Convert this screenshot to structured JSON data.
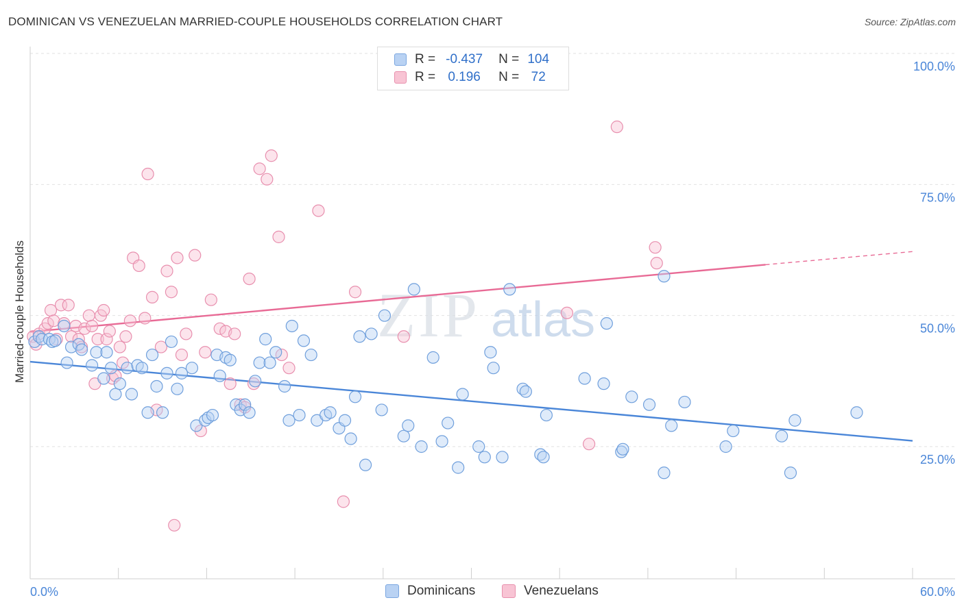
{
  "title": "DOMINICAN VS VENEZUELAN MARRIED-COUPLE HOUSEHOLDS CORRELATION CHART",
  "source": "Source: ZipAtlas.com",
  "watermark": {
    "zip": "ZIP",
    "atlas": "atlas"
  },
  "legend": {
    "rows": [
      {
        "r_label": "R =",
        "r_value": "-0.437",
        "n_label": "N =",
        "n_value": "104",
        "color": "#4a86d8"
      },
      {
        "r_label": "R =",
        "r_value": "0.196",
        "n_label": "N =",
        "n_value": "72",
        "color": "#e86a95"
      }
    ]
  },
  "bottom_legend": [
    "Dominicans",
    "Venezuelans"
  ],
  "colors": {
    "blue": "#4a86d8",
    "pink": "#e86a95",
    "axis_label": "#4a86d8"
  },
  "chart_data": {
    "type": "scatter",
    "ylabel": "Married-couple Households",
    "xlabel": "",
    "xlim": [
      0,
      60
    ],
    "ylim": [
      0,
      105
    ],
    "x_tick_labels": [
      "0.0%",
      "60.0%"
    ],
    "y_tick_labels": [
      "25.0%",
      "50.0%",
      "75.0%",
      "100.0%"
    ],
    "y_ticks": [
      25,
      50,
      75,
      100
    ],
    "series": [
      {
        "name": "Dominicans",
        "color": "#4a86d8",
        "trend": {
          "x0": 0,
          "y0": 41.2,
          "x1": 60,
          "y1": 26.1
        },
        "points": [
          [
            0.3,
            45
          ],
          [
            0.6,
            46
          ],
          [
            0.8,
            45.5
          ],
          [
            1.3,
            45.5
          ],
          [
            1.5,
            45
          ],
          [
            1.7,
            45.2
          ],
          [
            2.3,
            48
          ],
          [
            2.5,
            41
          ],
          [
            2.8,
            44
          ],
          [
            3.3,
            44.5
          ],
          [
            3.5,
            43.5
          ],
          [
            4.2,
            40.5
          ],
          [
            4.5,
            43
          ],
          [
            5,
            38
          ],
          [
            5.2,
            43
          ],
          [
            5.5,
            40
          ],
          [
            5.8,
            35
          ],
          [
            6.1,
            37
          ],
          [
            6.6,
            40
          ],
          [
            6.9,
            35
          ],
          [
            7.3,
            40.5
          ],
          [
            7.6,
            40
          ],
          [
            8,
            31.5
          ],
          [
            8.3,
            42.5
          ],
          [
            8.6,
            36.5
          ],
          [
            9,
            31.5
          ],
          [
            9.3,
            39
          ],
          [
            9.6,
            45
          ],
          [
            10,
            36
          ],
          [
            10.3,
            39
          ],
          [
            11,
            40
          ],
          [
            11.3,
            29
          ],
          [
            11.9,
            30
          ],
          [
            12.1,
            30.5
          ],
          [
            12.4,
            31
          ],
          [
            12.7,
            42.5
          ],
          [
            12.9,
            38.5
          ],
          [
            13.3,
            42
          ],
          [
            13.6,
            41.5
          ],
          [
            14,
            33
          ],
          [
            14.3,
            32
          ],
          [
            14.6,
            33
          ],
          [
            14.9,
            31.5
          ],
          [
            15.3,
            37.5
          ],
          [
            15.6,
            41
          ],
          [
            16,
            45.5
          ],
          [
            16.3,
            41
          ],
          [
            16.7,
            43
          ],
          [
            17.3,
            36.5
          ],
          [
            17.6,
            30
          ],
          [
            17.8,
            48
          ],
          [
            18.3,
            31
          ],
          [
            18.6,
            45.2
          ],
          [
            19.1,
            42.5
          ],
          [
            19.5,
            30
          ],
          [
            20.1,
            31
          ],
          [
            20.4,
            31.5
          ],
          [
            21,
            28.5
          ],
          [
            21.4,
            30
          ],
          [
            21.8,
            26.5
          ],
          [
            22.1,
            34.5
          ],
          [
            22.4,
            46
          ],
          [
            22.8,
            21.5
          ],
          [
            23.2,
            46.5
          ],
          [
            23.9,
            32
          ],
          [
            24.1,
            50
          ],
          [
            25.4,
            27
          ],
          [
            25.7,
            29
          ],
          [
            26.1,
            55
          ],
          [
            26.6,
            25
          ],
          [
            27.4,
            42
          ],
          [
            28,
            26
          ],
          [
            28.4,
            29.5
          ],
          [
            29.1,
            21
          ],
          [
            29.4,
            35
          ],
          [
            30.5,
            25
          ],
          [
            30.9,
            23
          ],
          [
            31.3,
            43
          ],
          [
            31.5,
            40
          ],
          [
            32.1,
            23
          ],
          [
            32.6,
            55
          ],
          [
            33.5,
            36
          ],
          [
            33.7,
            35.5
          ],
          [
            34.7,
            23.5
          ],
          [
            34.9,
            23
          ],
          [
            35.1,
            31
          ],
          [
            37.7,
            38
          ],
          [
            39,
            37
          ],
          [
            39.2,
            48.5
          ],
          [
            40.2,
            24
          ],
          [
            40.3,
            24.5
          ],
          [
            40.9,
            34.5
          ],
          [
            42.1,
            33
          ],
          [
            43.1,
            20
          ],
          [
            43.1,
            57.5
          ],
          [
            43.6,
            29
          ],
          [
            44.5,
            33.5
          ],
          [
            47.3,
            25
          ],
          [
            47.8,
            28
          ],
          [
            51.1,
            27
          ],
          [
            51.7,
            20
          ],
          [
            52,
            30
          ],
          [
            56.2,
            31.5
          ]
        ]
      },
      {
        "name": "Venezuelans",
        "color": "#e86a95",
        "trend": {
          "x0": 0,
          "y0": 46.9,
          "x1": 50,
          "y1": 59.7,
          "x_dash_end": 60,
          "y_dash_end": 62.2
        },
        "points": [
          [
            0.2,
            46
          ],
          [
            0.4,
            44.5
          ],
          [
            0.6,
            46.5
          ],
          [
            1,
            47.5
          ],
          [
            1.2,
            48.5
          ],
          [
            1.4,
            51
          ],
          [
            1.6,
            49
          ],
          [
            1.8,
            45.5
          ],
          [
            2.1,
            52
          ],
          [
            2.3,
            48.5
          ],
          [
            2.6,
            52
          ],
          [
            2.8,
            46
          ],
          [
            3.1,
            48
          ],
          [
            3.3,
            45.5
          ],
          [
            3.5,
            44
          ],
          [
            3.7,
            47.5
          ],
          [
            4,
            50
          ],
          [
            4.2,
            48
          ],
          [
            4.4,
            37
          ],
          [
            4.6,
            45.5
          ],
          [
            4.8,
            50
          ],
          [
            5,
            51
          ],
          [
            5.2,
            45.5
          ],
          [
            5.4,
            47
          ],
          [
            5.6,
            38
          ],
          [
            5.8,
            38.5
          ],
          [
            6.1,
            44
          ],
          [
            6.3,
            41
          ],
          [
            6.5,
            46
          ],
          [
            6.8,
            49
          ],
          [
            7,
            61
          ],
          [
            7.4,
            59.5
          ],
          [
            7.8,
            49.5
          ],
          [
            8,
            77
          ],
          [
            8.3,
            53.5
          ],
          [
            8.6,
            32
          ],
          [
            8.9,
            44
          ],
          [
            9.3,
            58.5
          ],
          [
            9.6,
            54.5
          ],
          [
            9.8,
            10
          ],
          [
            10,
            61
          ],
          [
            10.3,
            42.5
          ],
          [
            10.6,
            46.5
          ],
          [
            11.2,
            61.5
          ],
          [
            11.6,
            28
          ],
          [
            11.9,
            43
          ],
          [
            12.3,
            53
          ],
          [
            12.9,
            47.5
          ],
          [
            13.3,
            47
          ],
          [
            13.6,
            37
          ],
          [
            13.9,
            46.5
          ],
          [
            14.3,
            33
          ],
          [
            14.6,
            32.5
          ],
          [
            14.9,
            57
          ],
          [
            15.2,
            37
          ],
          [
            15.6,
            78
          ],
          [
            16.1,
            76
          ],
          [
            16.4,
            80.5
          ],
          [
            16.9,
            65
          ],
          [
            17.1,
            42.5
          ],
          [
            17.6,
            40
          ],
          [
            19.6,
            70
          ],
          [
            21.3,
            14.5
          ],
          [
            22.1,
            54.5
          ],
          [
            25.4,
            46
          ],
          [
            36.5,
            50.5
          ],
          [
            38,
            25.5
          ],
          [
            39.9,
            86
          ],
          [
            42.5,
            63
          ],
          [
            42.6,
            60
          ]
        ]
      }
    ]
  }
}
